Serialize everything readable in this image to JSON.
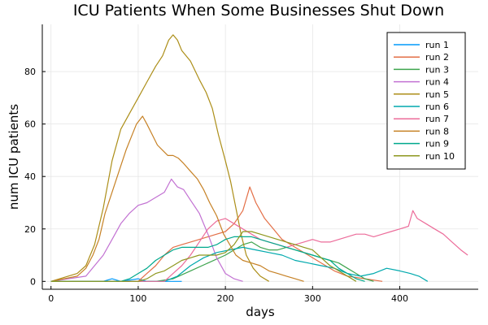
{
  "chart_data": {
    "type": "line",
    "title": "ICU Patients When Some Businesses Shut Down",
    "xlabel": "days",
    "ylabel": "num ICU patients",
    "xlim": [
      -10,
      490
    ],
    "ylim": [
      -3,
      98
    ],
    "xticks": [
      0,
      100,
      200,
      300,
      400
    ],
    "yticks": [
      0,
      20,
      40,
      60,
      80
    ],
    "grid": true,
    "legend_position": "top-right",
    "series": [
      {
        "name": "run 1",
        "color": "#009AFA",
        "points": [
          [
            0,
            0
          ],
          [
            60,
            0
          ],
          [
            70,
            1
          ],
          [
            80,
            0
          ],
          [
            100,
            1
          ],
          [
            110,
            0
          ],
          [
            120,
            0
          ],
          [
            130,
            0
          ],
          [
            140,
            0
          ],
          [
            150,
            0
          ]
        ]
      },
      {
        "name": "run 2",
        "color": "#E36F47",
        "points": [
          [
            0,
            0
          ],
          [
            100,
            0
          ],
          [
            110,
            3
          ],
          [
            120,
            6
          ],
          [
            130,
            10
          ],
          [
            140,
            13
          ],
          [
            150,
            14
          ],
          [
            160,
            15
          ],
          [
            170,
            16
          ],
          [
            180,
            17
          ],
          [
            190,
            18
          ],
          [
            200,
            19
          ],
          [
            210,
            22
          ],
          [
            220,
            27
          ],
          [
            228,
            36
          ],
          [
            235,
            30
          ],
          [
            245,
            24
          ],
          [
            255,
            20
          ],
          [
            265,
            16
          ],
          [
            275,
            14
          ],
          [
            285,
            12
          ],
          [
            295,
            10
          ],
          [
            305,
            8
          ],
          [
            315,
            6
          ],
          [
            325,
            4
          ],
          [
            340,
            2
          ],
          [
            360,
            1
          ],
          [
            380,
            0
          ]
        ]
      },
      {
        "name": "run 3",
        "color": "#3EA44E",
        "points": [
          [
            0,
            0
          ],
          [
            120,
            0
          ],
          [
            140,
            1
          ],
          [
            160,
            4
          ],
          [
            180,
            7
          ],
          [
            200,
            10
          ],
          [
            210,
            12
          ],
          [
            220,
            14
          ],
          [
            230,
            15
          ],
          [
            240,
            13
          ],
          [
            250,
            12
          ],
          [
            260,
            12
          ],
          [
            270,
            13
          ],
          [
            280,
            12
          ],
          [
            290,
            11
          ],
          [
            300,
            10
          ],
          [
            310,
            9
          ],
          [
            320,
            8
          ],
          [
            330,
            7
          ],
          [
            340,
            5
          ],
          [
            350,
            3
          ],
          [
            360,
            1
          ],
          [
            370,
            0
          ]
        ]
      },
      {
        "name": "run 4",
        "color": "#C271D2",
        "points": [
          [
            0,
            0
          ],
          [
            40,
            2
          ],
          [
            60,
            10
          ],
          [
            70,
            16
          ],
          [
            80,
            22
          ],
          [
            90,
            26
          ],
          [
            100,
            29
          ],
          [
            110,
            30
          ],
          [
            120,
            32
          ],
          [
            130,
            34
          ],
          [
            138,
            39
          ],
          [
            145,
            36
          ],
          [
            152,
            35
          ],
          [
            160,
            31
          ],
          [
            170,
            26
          ],
          [
            180,
            18
          ],
          [
            190,
            9
          ],
          [
            200,
            3
          ],
          [
            210,
            1
          ],
          [
            220,
            0
          ]
        ]
      },
      {
        "name": "run 5",
        "color": "#AC8E18",
        "points": [
          [
            0,
            0
          ],
          [
            30,
            3
          ],
          [
            40,
            6
          ],
          [
            50,
            14
          ],
          [
            60,
            28
          ],
          [
            70,
            46
          ],
          [
            80,
            58
          ],
          [
            90,
            64
          ],
          [
            100,
            70
          ],
          [
            110,
            76
          ],
          [
            120,
            82
          ],
          [
            128,
            86
          ],
          [
            135,
            92
          ],
          [
            140,
            94
          ],
          [
            145,
            92
          ],
          [
            150,
            88
          ],
          [
            160,
            84
          ],
          [
            170,
            77
          ],
          [
            178,
            72
          ],
          [
            185,
            66
          ],
          [
            192,
            56
          ],
          [
            200,
            46
          ],
          [
            206,
            38
          ],
          [
            212,
            28
          ],
          [
            218,
            18
          ],
          [
            224,
            10
          ],
          [
            232,
            5
          ],
          [
            240,
            2
          ],
          [
            250,
            0
          ]
        ]
      },
      {
        "name": "run 6",
        "color": "#00A9AD",
        "points": [
          [
            0,
            0
          ],
          [
            130,
            0
          ],
          [
            145,
            2
          ],
          [
            160,
            6
          ],
          [
            175,
            9
          ],
          [
            190,
            11
          ],
          [
            205,
            12
          ],
          [
            220,
            13
          ],
          [
            235,
            12
          ],
          [
            250,
            11
          ],
          [
            265,
            10
          ],
          [
            280,
            8
          ],
          [
            295,
            7
          ],
          [
            310,
            6
          ],
          [
            325,
            5
          ],
          [
            340,
            3
          ],
          [
            355,
            2
          ],
          [
            370,
            3
          ],
          [
            385,
            5
          ],
          [
            400,
            4
          ],
          [
            412,
            3
          ],
          [
            422,
            2
          ],
          [
            432,
            0
          ]
        ]
      },
      {
        "name": "run 7",
        "color": "#EC6C9A",
        "points": [
          [
            0,
            0
          ],
          [
            130,
            0
          ],
          [
            140,
            3
          ],
          [
            150,
            6
          ],
          [
            160,
            10
          ],
          [
            170,
            15
          ],
          [
            180,
            20
          ],
          [
            190,
            23
          ],
          [
            200,
            24
          ],
          [
            210,
            22
          ],
          [
            220,
            20
          ],
          [
            230,
            18
          ],
          [
            240,
            16
          ],
          [
            250,
            15
          ],
          [
            260,
            14
          ],
          [
            270,
            13
          ],
          [
            280,
            14
          ],
          [
            290,
            15
          ],
          [
            300,
            16
          ],
          [
            310,
            15
          ],
          [
            320,
            15
          ],
          [
            330,
            16
          ],
          [
            340,
            17
          ],
          [
            350,
            18
          ],
          [
            360,
            18
          ],
          [
            370,
            17
          ],
          [
            380,
            18
          ],
          [
            390,
            19
          ],
          [
            400,
            20
          ],
          [
            410,
            21
          ],
          [
            415,
            27
          ],
          [
            420,
            24
          ],
          [
            430,
            22
          ],
          [
            440,
            20
          ],
          [
            450,
            18
          ],
          [
            460,
            15
          ],
          [
            470,
            12
          ],
          [
            478,
            10
          ]
        ]
      },
      {
        "name": "run 8",
        "color": "#C68125",
        "points": [
          [
            0,
            0
          ],
          [
            30,
            2
          ],
          [
            40,
            5
          ],
          [
            48,
            10
          ],
          [
            55,
            16
          ],
          [
            62,
            26
          ],
          [
            70,
            34
          ],
          [
            78,
            42
          ],
          [
            86,
            50
          ],
          [
            92,
            55
          ],
          [
            98,
            60
          ],
          [
            105,
            63
          ],
          [
            110,
            60
          ],
          [
            116,
            56
          ],
          [
            122,
            52
          ],
          [
            128,
            50
          ],
          [
            134,
            48
          ],
          [
            140,
            48
          ],
          [
            146,
            47
          ],
          [
            152,
            45
          ],
          [
            160,
            42
          ],
          [
            168,
            39
          ],
          [
            175,
            35
          ],
          [
            182,
            30
          ],
          [
            190,
            25
          ],
          [
            198,
            18
          ],
          [
            205,
            14
          ],
          [
            212,
            10
          ],
          [
            220,
            8
          ],
          [
            230,
            7
          ],
          [
            240,
            6
          ],
          [
            250,
            4
          ],
          [
            260,
            3
          ],
          [
            270,
            2
          ],
          [
            280,
            1
          ],
          [
            290,
            0
          ]
        ]
      },
      {
        "name": "run 9",
        "color": "#00A98D",
        "points": [
          [
            0,
            0
          ],
          [
            80,
            0
          ],
          [
            90,
            1
          ],
          [
            100,
            3
          ],
          [
            110,
            5
          ],
          [
            120,
            8
          ],
          [
            130,
            10
          ],
          [
            140,
            12
          ],
          [
            150,
            13
          ],
          [
            160,
            13
          ],
          [
            170,
            13
          ],
          [
            180,
            13
          ],
          [
            190,
            14
          ],
          [
            200,
            16
          ],
          [
            210,
            17
          ],
          [
            220,
            17
          ],
          [
            230,
            17
          ],
          [
            240,
            16
          ],
          [
            250,
            15
          ],
          [
            260,
            14
          ],
          [
            270,
            13
          ],
          [
            280,
            12
          ],
          [
            290,
            11
          ],
          [
            300,
            10
          ],
          [
            310,
            9
          ],
          [
            320,
            8
          ],
          [
            330,
            5
          ],
          [
            340,
            3
          ],
          [
            350,
            1
          ],
          [
            360,
            0
          ]
        ]
      },
      {
        "name": "run 10",
        "color": "#8E971E",
        "points": [
          [
            0,
            0
          ],
          [
            100,
            0
          ],
          [
            110,
            1
          ],
          [
            120,
            3
          ],
          [
            130,
            4
          ],
          [
            140,
            6
          ],
          [
            150,
            8
          ],
          [
            160,
            9
          ],
          [
            170,
            10
          ],
          [
            180,
            10
          ],
          [
            190,
            10
          ],
          [
            200,
            11
          ],
          [
            210,
            14
          ],
          [
            220,
            19
          ],
          [
            230,
            19
          ],
          [
            240,
            18
          ],
          [
            250,
            17
          ],
          [
            260,
            16
          ],
          [
            270,
            15
          ],
          [
            280,
            14
          ],
          [
            290,
            13
          ],
          [
            300,
            12
          ],
          [
            310,
            9
          ],
          [
            320,
            6
          ],
          [
            330,
            4
          ],
          [
            340,
            2
          ],
          [
            350,
            0
          ]
        ]
      }
    ]
  }
}
